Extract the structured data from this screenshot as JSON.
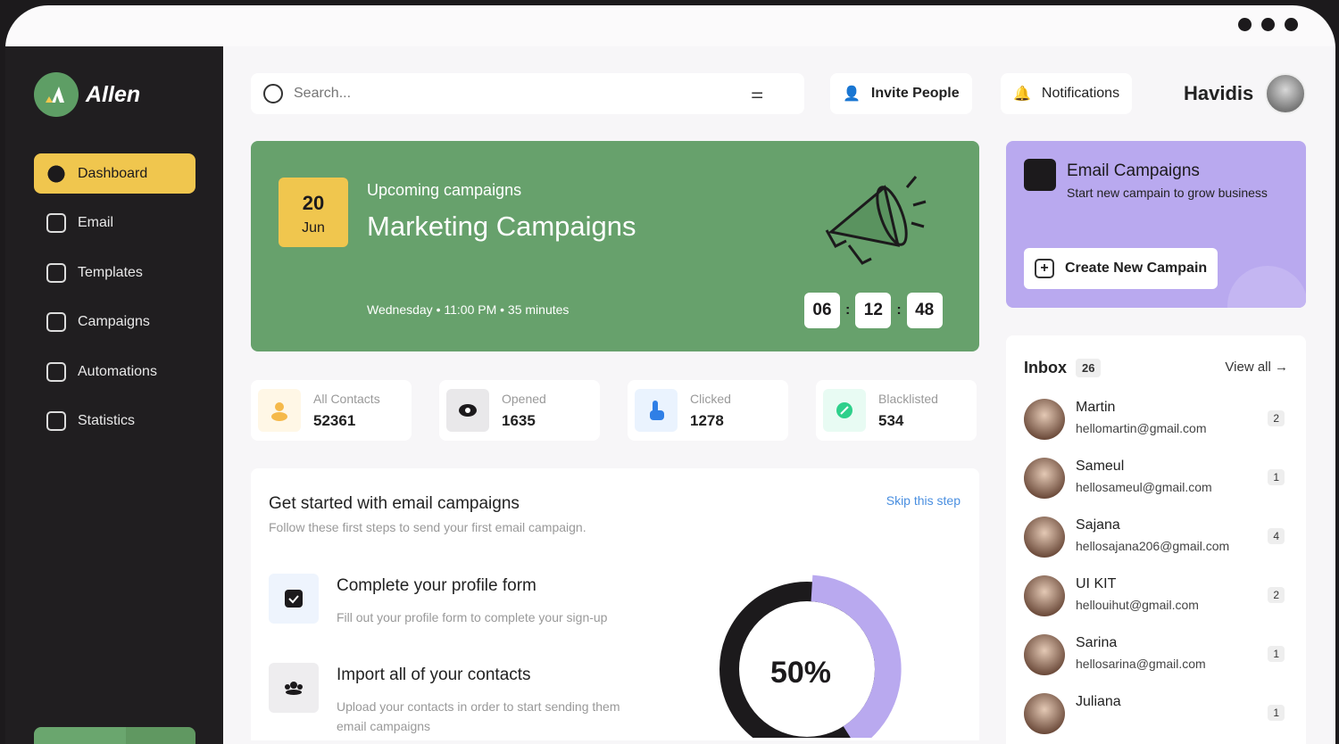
{
  "app": {
    "name": "Allen"
  },
  "sidebar": {
    "items": [
      {
        "label": "Dashboard",
        "icon": "pie-chart-icon",
        "active": true
      },
      {
        "label": "Email",
        "icon": "mail-icon"
      },
      {
        "label": "Templates",
        "icon": "template-icon"
      },
      {
        "label": "Campaigns",
        "icon": "megaphone-icon"
      },
      {
        "label": "Automations",
        "icon": "automation-icon"
      },
      {
        "label": "Statistics",
        "icon": "bar-chart-icon"
      }
    ]
  },
  "header": {
    "search_placeholder": "Search...",
    "invite": "Invite People",
    "notifications": "Notifications",
    "user": "Havidis"
  },
  "hero": {
    "day": "20",
    "month": "Jun",
    "subtitle": "Upcoming campaigns",
    "title": "Marketing Campaigns",
    "meta": "Wednesday • 11:00 PM • 35 minutes",
    "timer": [
      "06",
      "12",
      "48"
    ],
    "color": "#67a16c"
  },
  "stats": [
    {
      "label": "All Contacts",
      "value": "52361"
    },
    {
      "label": "Opened",
      "value": "1635"
    },
    {
      "label": "Clicked",
      "value": "1278"
    },
    {
      "label": "Blacklisted",
      "value": "534"
    }
  ],
  "get_started": {
    "title": "Get started with email campaigns",
    "subtitle": "Follow these first steps to send your first email campaign.",
    "skip": "Skip this step",
    "progress_label": "50%",
    "progress": 50,
    "steps": [
      {
        "title": "Complete your profile form",
        "desc": "Fill out your profile form to complete your sign-up",
        "done": true
      },
      {
        "title": "Import all of your contacts",
        "desc": "Upload your contacts in order to start sending them email campaigns"
      }
    ]
  },
  "email_campaigns": {
    "title": "Email Campaigns",
    "subtitle": "Start new campain to grow business",
    "button": "Create New Campain"
  },
  "inbox": {
    "title": "Inbox",
    "count": "26",
    "view_all": "View all",
    "messages": [
      {
        "name": "Martin",
        "email": "hellomartin@gmail.com",
        "count": "2"
      },
      {
        "name": "Sameul",
        "email": "hellosameul@gmail.com",
        "count": "1"
      },
      {
        "name": "Sajana",
        "email": "hellosajana206@gmail.com",
        "count": "4"
      },
      {
        "name": "UI KIT",
        "email": "hellouihut@gmail.com",
        "count": "2"
      },
      {
        "name": "Sarina",
        "email": "hellosarina@gmail.com",
        "count": "1"
      },
      {
        "name": "Juliana",
        "email": "",
        "count": "1"
      }
    ]
  }
}
